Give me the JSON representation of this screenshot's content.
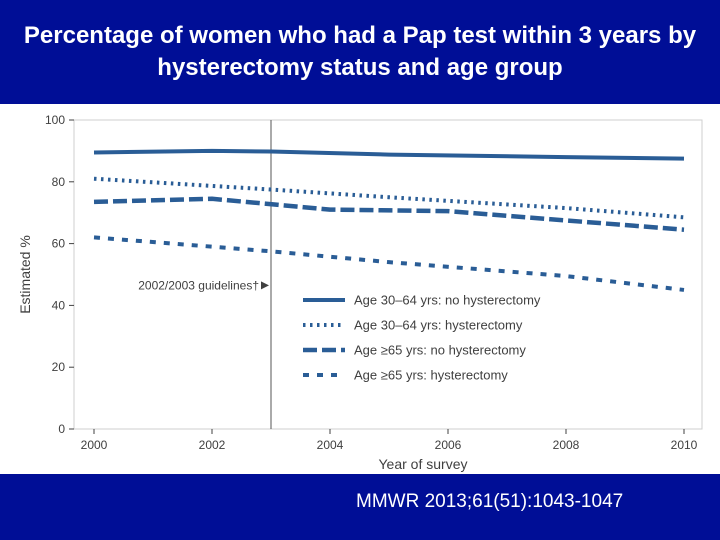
{
  "slide": {
    "title": "Percentage of women who had a Pap test within 3 years by hysterectomy status and age group",
    "source": "MMWR 2013;61(51):1043-1047"
  },
  "colors": {
    "background_bars": "#000e96",
    "series": "#2a5d96",
    "axis_text": "#404040",
    "grid": "#cfcfcf"
  },
  "chart_data": {
    "type": "line",
    "xlabel": "Year of survey",
    "ylabel": "Estimated %",
    "xlim": [
      2000,
      2010
    ],
    "ylim": [
      0,
      100
    ],
    "x_ticks": [
      "2000",
      "2002",
      "2004",
      "2006",
      "2008",
      "2010"
    ],
    "y_ticks": [
      "0",
      "20",
      "40",
      "60",
      "80",
      "100"
    ],
    "grid": true,
    "legend_position": "center-right",
    "annotation": {
      "label": "2002/2003 guidelines†",
      "x": 2003
    },
    "series": [
      {
        "name": "Age 30–64 yrs: no hysterectomy",
        "style": "solid",
        "x": [
          2000,
          2002,
          2003,
          2005,
          2008,
          2010
        ],
        "values": [
          89.5,
          90.0,
          89.8,
          88.8,
          88.0,
          87.5
        ]
      },
      {
        "name": "Age 30–64 yrs: hysterectomy",
        "style": "dotted",
        "x": [
          2000,
          2003,
          2005,
          2008,
          2010
        ],
        "values": [
          81.0,
          77.5,
          75.0,
          71.5,
          68.5
        ]
      },
      {
        "name": "Age ≥65 yrs: no hysterectomy",
        "style": "dashed",
        "x": [
          2000,
          2002,
          2004,
          2006,
          2008,
          2010
        ],
        "values": [
          73.5,
          74.5,
          71.0,
          70.5,
          67.5,
          64.5
        ]
      },
      {
        "name": "Age ≥65 yrs: hysterectomy",
        "style": "short-dashed",
        "x": [
          2000,
          2003,
          2005,
          2008,
          2010
        ],
        "values": [
          62.0,
          57.5,
          54.0,
          49.5,
          45.0
        ]
      }
    ]
  }
}
